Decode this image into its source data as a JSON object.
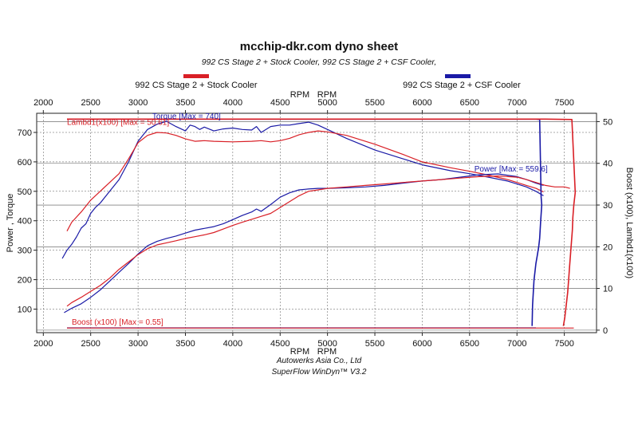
{
  "chart_data": {
    "type": "line",
    "title": "mcchip-dkr.com dyno sheet",
    "subtitle": "992 CS Stage 2 + Stock Cooler, 992 CS Stage 2 + CSF Cooler,",
    "legend": [
      {
        "name": "992 CS Stage 2 + Stock Cooler",
        "color": "#d91f26"
      },
      {
        "name": "992 CS Stage 2 + CSF Cooler",
        "color": "#1a1aa6"
      }
    ],
    "xlabel_top": [
      "RPM",
      "RPM"
    ],
    "xlabel_bottom": [
      "RPM",
      "RPM"
    ],
    "ylabel_left": "Power , Torque",
    "ylabel_right": "Boost (x100), Lambd1(x100)",
    "x_ticks": [
      2000,
      2500,
      3000,
      3500,
      4000,
      4500,
      5000,
      5500,
      6000,
      6500,
      7000,
      7500
    ],
    "y_left_ticks": [
      100,
      200,
      300,
      400,
      500,
      600,
      700
    ],
    "y_right_ticks": [
      0,
      10,
      20,
      30,
      40,
      50
    ],
    "xlim": [
      1930,
      7840
    ],
    "ylim_left": [
      20,
      765
    ],
    "ylim_right": [
      -0.6,
      52
    ],
    "grid": true,
    "colors": {
      "stock": "#d91f26",
      "csf": "#1a1aa6",
      "grid": "#555555"
    },
    "annotations": {
      "torque": "Torque [Max = 740]",
      "lambda": "Lambd1(x100) [Max = 50.61]",
      "power": "Power  [Max = 559.6]",
      "boost": "Boost (x100) [Max = 0.55]"
    },
    "series": [
      {
        "name": "Torque",
        "legend": "992 CS Stage 2 + CSF Cooler",
        "axis": "left",
        "x": [
          2200,
          2250,
          2300,
          2350,
          2400,
          2450,
          2500,
          2550,
          2600,
          2700,
          2800,
          2900,
          3000,
          3100,
          3200,
          3300,
          3400,
          3500,
          3550,
          3600,
          3650,
          3700,
          3800,
          3900,
          4000,
          4100,
          4200,
          4250,
          4300,
          4400,
          4500,
          4600,
          4700,
          4800,
          4900,
          5000,
          5200,
          5500,
          5800,
          6000,
          6300,
          6500,
          6700,
          6900,
          7000,
          7100,
          7200,
          7280
        ],
        "y": [
          272,
          300,
          320,
          345,
          375,
          390,
          425,
          445,
          460,
          500,
          540,
          600,
          670,
          710,
          728,
          738,
          720,
          705,
          725,
          720,
          710,
          718,
          705,
          712,
          715,
          710,
          708,
          720,
          700,
          720,
          725,
          725,
          730,
          735,
          725,
          710,
          680,
          640,
          610,
          590,
          570,
          560,
          548,
          535,
          525,
          515,
          500,
          485
        ]
      },
      {
        "name": "Torque",
        "legend": "992 CS Stage 2 + Stock Cooler",
        "axis": "left",
        "x": [
          2250,
          2300,
          2400,
          2500,
          2600,
          2700,
          2800,
          2900,
          3000,
          3100,
          3200,
          3300,
          3400,
          3500,
          3600,
          3700,
          3800,
          4000,
          4200,
          4300,
          4400,
          4500,
          4600,
          4700,
          4800,
          4900,
          5000,
          5200,
          5500,
          5800,
          6000,
          6300,
          6500,
          6700,
          6900,
          7000,
          7100,
          7200,
          7280
        ],
        "y": [
          365,
          395,
          430,
          470,
          500,
          530,
          560,
          610,
          665,
          690,
          700,
          698,
          690,
          678,
          670,
          672,
          670,
          668,
          670,
          672,
          668,
          672,
          680,
          692,
          700,
          705,
          702,
          690,
          660,
          625,
          600,
          580,
          568,
          555,
          540,
          530,
          520,
          510,
          498
        ]
      },
      {
        "name": "Power",
        "legend": "992 CS Stage 2 + CSF Cooler",
        "axis": "left",
        "x": [
          2220,
          2300,
          2400,
          2500,
          2600,
          2700,
          2800,
          2900,
          3000,
          3100,
          3200,
          3300,
          3400,
          3500,
          3600,
          3700,
          3800,
          3900,
          4000,
          4100,
          4200,
          4250,
          4300,
          4400,
          4500,
          4600,
          4700,
          4800,
          4900,
          5000,
          5200,
          5400,
          5600,
          5800,
          6000,
          6200,
          6400,
          6600,
          6800,
          7000,
          7100,
          7200,
          7280
        ],
        "y": [
          88,
          103,
          118,
          140,
          165,
          195,
          225,
          255,
          287,
          315,
          330,
          340,
          348,
          358,
          368,
          374,
          380,
          390,
          404,
          418,
          430,
          440,
          432,
          455,
          480,
          495,
          505,
          508,
          510,
          510,
          512,
          515,
          520,
          528,
          535,
          540,
          548,
          556,
          559,
          550,
          540,
          528,
          520
        ]
      },
      {
        "name": "Power",
        "legend": "992 CS Stage 2 + Stock Cooler",
        "axis": "left",
        "x": [
          2250,
          2300,
          2400,
          2500,
          2600,
          2700,
          2800,
          2900,
          3000,
          3100,
          3200,
          3300,
          3400,
          3500,
          3600,
          3700,
          3800,
          3900,
          4000,
          4100,
          4200,
          4300,
          4400,
          4500,
          4600,
          4700,
          4800,
          4900,
          5000,
          5200,
          5400,
          5600,
          5800,
          6000,
          6200,
          6400,
          6600,
          6800,
          7000,
          7100,
          7200,
          7300,
          7400,
          7500,
          7560
        ],
        "y": [
          110,
          122,
          140,
          160,
          180,
          205,
          235,
          260,
          285,
          305,
          318,
          325,
          332,
          340,
          346,
          352,
          360,
          372,
          384,
          395,
          405,
          415,
          425,
          445,
          465,
          485,
          500,
          505,
          510,
          515,
          520,
          525,
          530,
          535,
          540,
          545,
          550,
          552,
          548,
          540,
          530,
          520,
          515,
          515,
          510
        ]
      },
      {
        "name": "Lambd1",
        "legend": "992 CS Stage 2 + CSF Cooler",
        "axis": "right",
        "x": [
          2250,
          3000,
          4000,
          5000,
          5500,
          6000,
          6500,
          7000,
          7200,
          7240,
          7255,
          7262,
          7250,
          7240,
          7230,
          7215,
          7200,
          7190,
          7180,
          7172,
          7165,
          7160
        ],
        "y": [
          50.6,
          50.6,
          50.6,
          50.6,
          50.6,
          50.6,
          50.6,
          50.6,
          50.6,
          50.5,
          32,
          30,
          26,
          22,
          20,
          18,
          16,
          14,
          12,
          9,
          6,
          1
        ]
      },
      {
        "name": "Lambd1",
        "legend": "992 CS Stage 2 + Stock Cooler",
        "axis": "right",
        "x": [
          2250,
          3000,
          4000,
          5000,
          6000,
          6800,
          7000,
          7300,
          7580,
          7615,
          7600,
          7590,
          7585,
          7575,
          7565,
          7555,
          7545,
          7535,
          7520,
          7505,
          7490
        ],
        "y": [
          50.6,
          50.6,
          50.6,
          50.6,
          50.6,
          50.6,
          50.6,
          50.6,
          50.5,
          33,
          30,
          27,
          24,
          21,
          18,
          15,
          12,
          9,
          6,
          3,
          1
        ]
      },
      {
        "name": "Boost",
        "legend": "992 CS Stage 2 + CSF Cooler",
        "axis": "right",
        "x": [
          2250,
          7200
        ],
        "y": [
          0.55,
          0.55
        ]
      },
      {
        "name": "Boost",
        "legend": "992 CS Stage 2 + Stock Cooler",
        "axis": "right",
        "x": [
          2250,
          7600
        ],
        "y": [
          0.5,
          0.5
        ]
      }
    ],
    "footer": [
      "Autowerks Asia Co., Ltd",
      "SuperFlow WinDyn™ V3.2"
    ]
  }
}
